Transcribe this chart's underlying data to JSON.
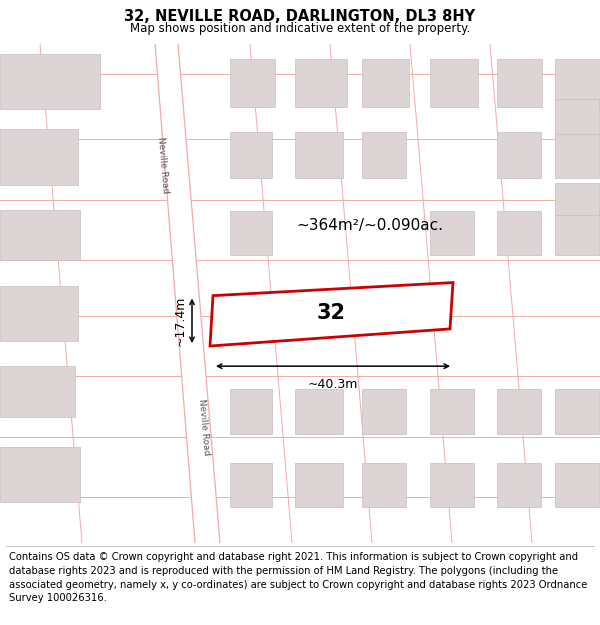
{
  "title": "32, NEVILLE ROAD, DARLINGTON, DL3 8HY",
  "subtitle": "Map shows position and indicative extent of the property.",
  "footer": "Contains OS data © Crown copyright and database right 2021. This information is subject to Crown copyright and database rights 2023 and is reproduced with the permission of HM Land Registry. The polygons (including the associated geometry, namely x, y co-ordinates) are subject to Crown copyright and database rights 2023 Ordnance Survey 100026316.",
  "area_label": "~364m²/~0.090ac.",
  "width_label": "~40.3m",
  "height_label": "~17.4m",
  "number_label": "32",
  "map_bg": "#f7f2f1",
  "road_color": "#ffffff",
  "road_stripe_color": "#f2aaaa",
  "building_color": "#ddd5d5",
  "building_edge_color": "#c8bebe",
  "plot_color": "#cc0000",
  "title_fontsize": 10.5,
  "subtitle_fontsize": 8.5,
  "footer_fontsize": 7.2
}
